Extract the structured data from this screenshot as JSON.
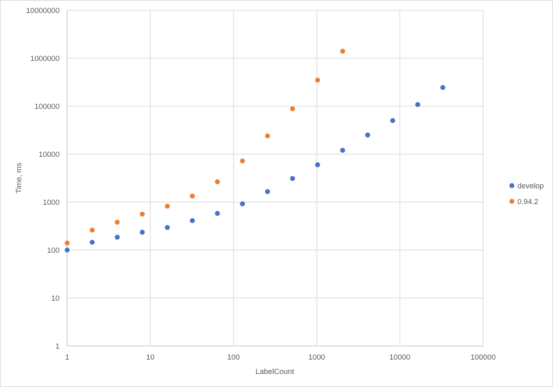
{
  "chart_data": {
    "type": "scatter",
    "title": "",
    "xlabel": "LabelCount",
    "ylabel": "Time, ms",
    "x_scale": "log",
    "y_scale": "log",
    "xlim": [
      1,
      100000
    ],
    "ylim": [
      1,
      10000000
    ],
    "x_ticks": [
      "1",
      "10",
      "100",
      "1000",
      "10000",
      "100000"
    ],
    "y_ticks": [
      "1",
      "10",
      "100",
      "1000",
      "10000",
      "100000",
      "1000000",
      "10000000"
    ],
    "grid": true,
    "legend_position": "right",
    "series": [
      {
        "name": "develop",
        "color": "#4472c4",
        "x": [
          1,
          2,
          4,
          8,
          16,
          32,
          64,
          128,
          256,
          512,
          1024,
          2048,
          4096,
          8192,
          16384,
          32768
        ],
        "y": [
          100,
          145,
          185,
          235,
          295,
          410,
          580,
          920,
          1650,
          3100,
          6000,
          12000,
          25000,
          50000,
          108000,
          245000
        ]
      },
      {
        "name": "0.94.2",
        "color": "#ed7d31",
        "x": [
          1,
          2,
          4,
          8,
          16,
          32,
          64,
          128,
          256,
          512,
          1024,
          2048
        ],
        "y": [
          140,
          260,
          380,
          560,
          820,
          1330,
          2650,
          7200,
          24000,
          88000,
          350000,
          1400000
        ]
      }
    ]
  }
}
